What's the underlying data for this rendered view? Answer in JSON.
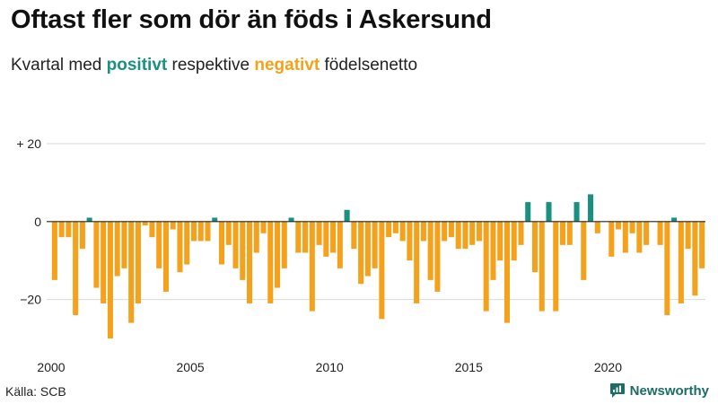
{
  "title": "Oftast fler som dör än föds i Askersund",
  "subtitle": {
    "prefix": "Kvartal med ",
    "positive_word": "positivt",
    "middle": " respektive ",
    "negative_word": "negativt",
    "suffix": " födelsenetto"
  },
  "source": "Källa: SCB",
  "brand": "Newsworthy",
  "colors": {
    "positive": "#1a9080",
    "negative": "#f4a21c",
    "gridline": "#d9d9d9",
    "zero_line": "#222222",
    "brand": "#1a6e66"
  },
  "chart_data": {
    "type": "bar",
    "title": "Oftast fler som dör än föds i Askersund",
    "subtitle": "Kvartal med positivt respektive negativt födelsenetto",
    "xlabel": "",
    "ylabel": "",
    "ylim": [
      -30,
      20
    ],
    "y_ticks": [
      {
        "value": 20,
        "label": "+ 20"
      },
      {
        "value": 0,
        "label": "0"
      },
      {
        "value": -20,
        "label": "−20"
      }
    ],
    "x_ticks": [
      {
        "year": 2000,
        "label": "2000"
      },
      {
        "year": 2005,
        "label": "2005"
      },
      {
        "year": 2010,
        "label": "2010"
      },
      {
        "year": 2015,
        "label": "2015"
      },
      {
        "year": 2020,
        "label": "2020"
      }
    ],
    "grid": true,
    "first_period": "2000 Q1",
    "frequency": "quarterly",
    "series": [
      {
        "values": [
          -15,
          -4,
          -4,
          -24,
          -7,
          1,
          -17,
          -21,
          -30,
          -14,
          -12,
          -26,
          -21,
          -1,
          -4,
          -12,
          -18,
          -2,
          -13,
          -11,
          -5,
          -5,
          -5,
          1,
          -11,
          -6,
          -12,
          -15,
          -21,
          -8,
          -3,
          -21,
          -17,
          -12,
          1,
          -8,
          -8,
          -23,
          -6,
          -9,
          -8,
          -12,
          3,
          -7,
          -16,
          -14,
          -12,
          -25,
          -4,
          -3,
          -5,
          -10,
          -21,
          -5,
          -15,
          -18,
          -5,
          -4,
          -7,
          -7,
          -6,
          -5,
          -23,
          -15,
          -10,
          -26,
          -10,
          -6,
          5,
          -13,
          -23,
          5,
          -23,
          -6,
          -6,
          5,
          -15,
          7,
          -3,
          0,
          -9,
          -2,
          -8,
          -3,
          -8,
          -6,
          0,
          -6,
          -24,
          1,
          -21,
          -7,
          -19,
          -12
        ]
      }
    ]
  }
}
